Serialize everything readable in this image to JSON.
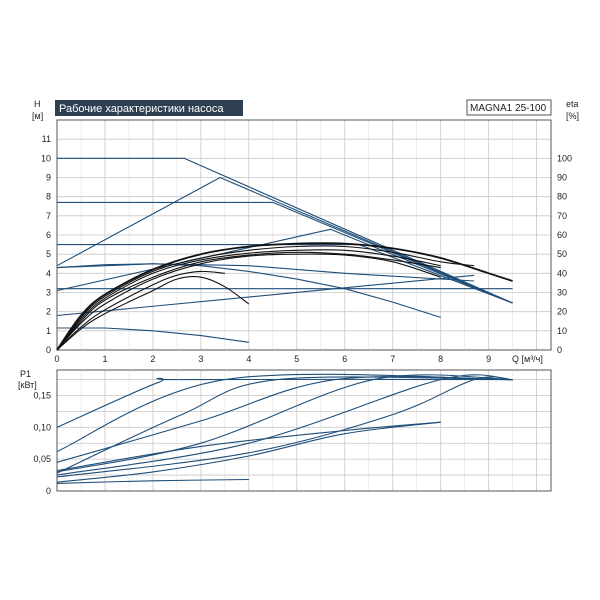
{
  "header": {
    "title": "Рабочие характеристики насоса",
    "model": "MAGNA1 25-100"
  },
  "colors": {
    "curve": "#1f4e79",
    "efficiency": "#111111",
    "grid": "#c8c8c8",
    "frame": "#555555",
    "title_bg": "#2f3f52"
  },
  "chart_data": [
    {
      "type": "line",
      "name": "head",
      "ylabel": "H",
      "ylabel_unit": "[м]",
      "y2label": "eta",
      "y2label_unit": "[%]",
      "xlabel": "Q [м³/ч]",
      "xlim": [
        0,
        10.3
      ],
      "ylim": [
        0,
        12
      ],
      "y2lim": [
        0,
        120
      ],
      "x_ticks": [
        0,
        1,
        2,
        3,
        4,
        5,
        6,
        7,
        8,
        9
      ],
      "y_ticks": [
        0,
        1,
        2,
        3,
        4,
        5,
        6,
        7,
        8,
        9,
        10,
        11
      ],
      "y2_ticks": [
        0,
        10,
        20,
        30,
        40,
        50,
        60,
        70,
        80,
        90,
        100
      ],
      "grid": true,
      "head_curves": [
        {
          "x": [
            0,
            2.65,
            9.5
          ],
          "y": [
            10,
            10,
            2.45
          ]
        },
        {
          "x": [
            0,
            4.5,
            9.5
          ],
          "y": [
            7.7,
            7.7,
            2.45
          ]
        },
        {
          "x": [
            0,
            6.3,
            9.5
          ],
          "y": [
            5.5,
            5.5,
            2.45
          ]
        },
        {
          "x": [
            0,
            9.5
          ],
          "y": [
            3.2,
            3.2
          ]
        },
        {
          "x": [
            0,
            3.4,
            9.5
          ],
          "y": [
            4.4,
            9.0,
            2.45
          ]
        },
        {
          "x": [
            0,
            5.7,
            9.5
          ],
          "y": [
            3.1,
            6.3,
            2.45
          ]
        },
        {
          "x": [
            0,
            2,
            4,
            6,
            8.7
          ],
          "y": [
            4.3,
            4.5,
            4.4,
            4.0,
            3.6
          ]
        },
        {
          "x": [
            0,
            1,
            2,
            3,
            4,
            5,
            6,
            7,
            8
          ],
          "y": [
            4.3,
            4.45,
            4.5,
            4.4,
            4.1,
            3.7,
            3.2,
            2.5,
            1.7
          ]
        },
        {
          "x": [
            0,
            8.7
          ],
          "y": [
            1.8,
            3.9
          ]
        },
        {
          "x": [
            0,
            1,
            2,
            3,
            4
          ],
          "y": [
            1.15,
            1.15,
            1.0,
            0.75,
            0.4
          ]
        }
      ],
      "efficiency_curves": [
        {
          "x": [
            0,
            0.5,
            1,
            2,
            3,
            4,
            5,
            6,
            7,
            8,
            9,
            9.5
          ],
          "y": [
            0,
            18,
            29,
            42,
            50,
            54,
            55.5,
            55.5,
            53,
            48,
            40,
            36
          ]
        },
        {
          "x": [
            0,
            0.5,
            1,
            2,
            3,
            4,
            5,
            6,
            7,
            8,
            8.7
          ],
          "y": [
            0,
            17,
            28,
            41,
            48,
            52,
            54,
            54,
            51,
            46,
            44
          ]
        },
        {
          "x": [
            0,
            0.5,
            1,
            2,
            3,
            4,
            5,
            6,
            7,
            8
          ],
          "y": [
            0,
            16,
            27,
            40,
            47,
            50.5,
            52,
            52,
            49,
            44
          ]
        },
        {
          "x": [
            0,
            0.5,
            1,
            2,
            3,
            4,
            5,
            6,
            7,
            8
          ],
          "y": [
            0,
            15,
            26,
            38,
            46,
            49.5,
            51,
            50,
            47,
            43
          ]
        },
        {
          "x": [
            0,
            0.5,
            1,
            2,
            3,
            4,
            5,
            6,
            7,
            8
          ],
          "y": [
            0,
            14,
            24,
            37,
            45,
            49,
            50,
            49.5,
            46,
            38
          ]
        },
        {
          "x": [
            0,
            0.5,
            1,
            2,
            2.5,
            3,
            3.5
          ],
          "y": [
            0,
            12,
            21,
            34,
            39,
            41,
            40
          ]
        },
        {
          "x": [
            0,
            0.5,
            1,
            2,
            2.5,
            3,
            3.5,
            4
          ],
          "y": [
            0,
            11,
            19,
            31,
            37,
            38,
            33,
            24
          ]
        }
      ]
    },
    {
      "type": "line",
      "name": "power",
      "ylabel": "P1",
      "ylabel_unit": "[кВт]",
      "xlim": [
        0,
        10.3
      ],
      "ylim": [
        0,
        0.19
      ],
      "y_ticks": [
        0,
        0.05,
        0.1,
        0.15
      ],
      "y_tick_labels": [
        "0",
        "0,05",
        "0,10",
        "0,15"
      ],
      "grid": true,
      "power_curves": [
        {
          "x": [
            0,
            2.1,
            2.7,
            9.5
          ],
          "y": [
            0.1,
            0.17,
            0.175,
            0.175
          ]
        },
        {
          "x": [
            0,
            3.5,
            9.5
          ],
          "y": [
            0.062,
            0.175,
            0.175
          ]
        },
        {
          "x": [
            0,
            2.6,
            4.6,
            9.5
          ],
          "y": [
            0.028,
            0.12,
            0.175,
            0.175
          ]
        },
        {
          "x": [
            0,
            3,
            5.8,
            9.5
          ],
          "y": [
            0.045,
            0.11,
            0.175,
            0.175
          ]
        },
        {
          "x": [
            0,
            3,
            6.6,
            9.5
          ],
          "y": [
            0.03,
            0.075,
            0.175,
            0.175
          ]
        },
        {
          "x": [
            0,
            4,
            8,
            9.5
          ],
          "y": [
            0.025,
            0.075,
            0.175,
            0.175
          ]
        },
        {
          "x": [
            0,
            4,
            7,
            8.7,
            9.5
          ],
          "y": [
            0.022,
            0.06,
            0.12,
            0.175,
            0.175
          ]
        },
        {
          "x": [
            0,
            3,
            6,
            8
          ],
          "y": [
            0.032,
            0.07,
            0.095,
            0.108
          ]
        },
        {
          "x": [
            0,
            2,
            4,
            6,
            8
          ],
          "y": [
            0.014,
            0.03,
            0.055,
            0.09,
            0.108
          ]
        },
        {
          "x": [
            0,
            2,
            4
          ],
          "y": [
            0.012,
            0.016,
            0.018
          ]
        }
      ]
    }
  ]
}
